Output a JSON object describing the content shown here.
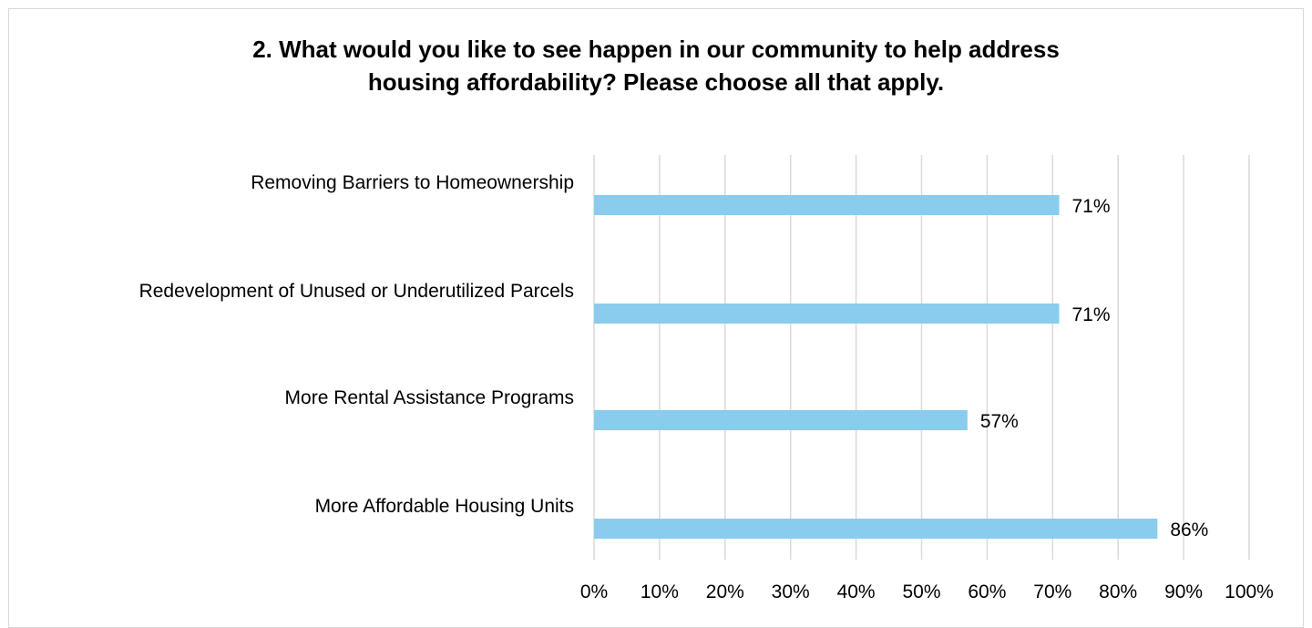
{
  "chart_data": {
    "type": "bar",
    "orientation": "horizontal",
    "title_lines": [
      "2. What would you like to see happen in our community to help address",
      "housing affordability? Please choose all that apply."
    ],
    "categories": [
      "Removing Barriers to Homeownership",
      "Redevelopment of Unused or Underutilized Parcels",
      "More Rental Assistance Programs",
      "More Affordable Housing Units"
    ],
    "values": [
      71,
      71,
      57,
      86
    ],
    "value_labels": [
      "71%",
      "71%",
      "57%",
      "86%"
    ],
    "x_ticks": [
      "0%",
      "10%",
      "20%",
      "30%",
      "40%",
      "50%",
      "60%",
      "70%",
      "80%",
      "90%",
      "100%"
    ],
    "xlim": [
      0,
      100
    ],
    "grid": true,
    "legend": "none",
    "bar_color": "#89ccee",
    "grid_color": "#d9d9d9"
  }
}
